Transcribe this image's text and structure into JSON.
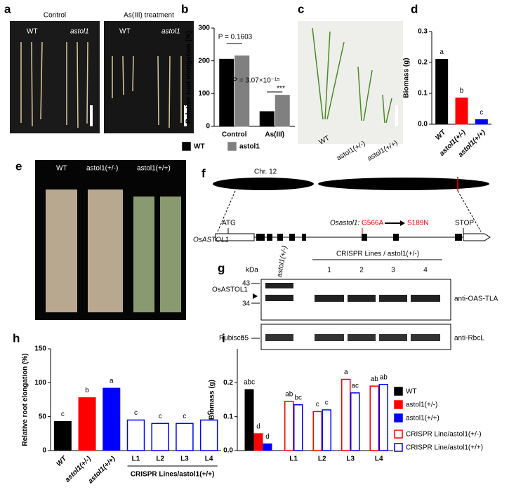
{
  "panels": {
    "letters": [
      "a",
      "b",
      "c",
      "d",
      "e",
      "f",
      "g",
      "h",
      "i"
    ]
  },
  "panel_a": {
    "conditions": [
      "Control",
      "As(III) treatment"
    ],
    "labels": [
      "WT",
      "astol1",
      "WT",
      "astol1"
    ]
  },
  "panel_c": {
    "labels": [
      "WT",
      "astol1(+/-)",
      "astol1(+/+)"
    ]
  },
  "panel_e": {
    "labels": [
      "WT",
      "astol1(+/-)",
      "astol1(+/+)"
    ]
  },
  "panel_f": {
    "chromosome": "Chr. 12",
    "start": "ATG",
    "stop": "STOP",
    "gene": "OsASTOL1",
    "mutant": "Osastol1:",
    "nucleotide_change": "G566A",
    "amino_acid_change": "S189N"
  },
  "panel_g": {
    "unit": "kDa",
    "control_lane": "astol1(+/-)",
    "lanes_title": "CRISPR Lines / astol1(+/-)",
    "lanes": [
      "1",
      "2",
      "3",
      "4"
    ],
    "markers": [
      "43",
      "34",
      "55"
    ],
    "bands": [
      "OsASTOL1",
      "Rubisco"
    ],
    "antibodies": [
      "anti-OAS-TLA",
      "anti-RbcL"
    ]
  },
  "chart_data": [
    {
      "type": "bar",
      "y_label": "Relative root elongation (%)",
      "categories": [
        "Control",
        "As(III)"
      ],
      "series": [
        {
          "name": "WT",
          "color": "#000000",
          "values": [
            205,
            45
          ]
        },
        {
          "name": "astol1",
          "color": "#808080",
          "values": [
            215,
            95
          ]
        }
      ],
      "ylim": [
        0,
        300
      ],
      "yticks": [
        0,
        100,
        200,
        300
      ],
      "annotations": [
        "P = 0.1603",
        "P = 3.07×10⁻¹⁵",
        "***"
      ],
      "legend": "bottom"
    },
    {
      "type": "bar",
      "y_label": "Biomass (g)",
      "categories": [
        "WT",
        "astol1(+/-)",
        "astol1(+/+)"
      ],
      "values": [
        0.21,
        0.085,
        0.015
      ],
      "colors": [
        "#000000",
        "#ff0000",
        "#0000ff"
      ],
      "letters": [
        "a",
        "b",
        "c"
      ],
      "ylim": [
        0,
        0.3
      ],
      "yticks": [
        {
          "value": 0,
          "label": "0.0"
        },
        0.1,
        0.2,
        0.3
      ]
    },
    {
      "type": "bar",
      "y_label": "Relative root elongation (%)",
      "x_label": "CRISPR Lines/astol1(+/+)",
      "categories": [
        "WT",
        "astol1(+/-)",
        "astol1(+/+)",
        "L1",
        "L2",
        "L3",
        "L4"
      ],
      "values": [
        43,
        78,
        92,
        45,
        40,
        40,
        45
      ],
      "colors": [
        "#000000",
        "#ff0000",
        "#0000ff",
        "#0000ff",
        "#0000ff",
        "#0000ff",
        "#0000ff"
      ],
      "filled": [
        true,
        true,
        true,
        false,
        false,
        false,
        false
      ],
      "letters": [
        "c",
        "b",
        "a",
        "c",
        "c",
        "c",
        "c"
      ],
      "ylim": [
        0,
        150
      ],
      "yticks": [
        0,
        50,
        100,
        150
      ]
    },
    {
      "type": "bar",
      "y_label": "Biomass (g)",
      "categories": [
        null,
        "L1",
        "L2",
        "L3",
        "L4"
      ],
      "series": [
        {
          "name": "WT",
          "color": "#000000",
          "filled": true,
          "values": [
            0.18,
            null,
            null,
            null,
            null
          ],
          "letters": [
            "abc",
            null,
            null,
            null,
            null
          ]
        },
        {
          "name": "astol1(+/-)",
          "color": "#ff0000",
          "filled": true,
          "values": [
            0.05,
            null,
            null,
            null,
            null
          ],
          "letters": [
            "d",
            null,
            null,
            null,
            null
          ]
        },
        {
          "name": "astol1(+/+)",
          "color": "#0000ff",
          "filled": true,
          "values": [
            0.02,
            null,
            null,
            null,
            null
          ],
          "letters": [
            "d",
            null,
            null,
            null,
            null
          ]
        },
        {
          "name": "CRISPR Line/astol1(+/-)",
          "color": "#ff0000",
          "filled": false,
          "values": [
            null,
            0.145,
            0.115,
            0.21,
            0.19
          ],
          "letters": [
            null,
            "ab",
            "c",
            "a",
            "ab"
          ]
        },
        {
          "name": "CRISPR Line/astol1(+/+)",
          "color": "#0000ff",
          "filled": false,
          "values": [
            null,
            0.135,
            0.12,
            0.17,
            0.195
          ],
          "letters": [
            null,
            "bc",
            "c",
            "ac",
            "ab"
          ]
        }
      ],
      "ylim": [
        0,
        0.3
      ],
      "yticks": [
        {
          "value": 0,
          "label": "0.0"
        },
        0.1,
        0.2
      ],
      "legend": "right"
    }
  ]
}
